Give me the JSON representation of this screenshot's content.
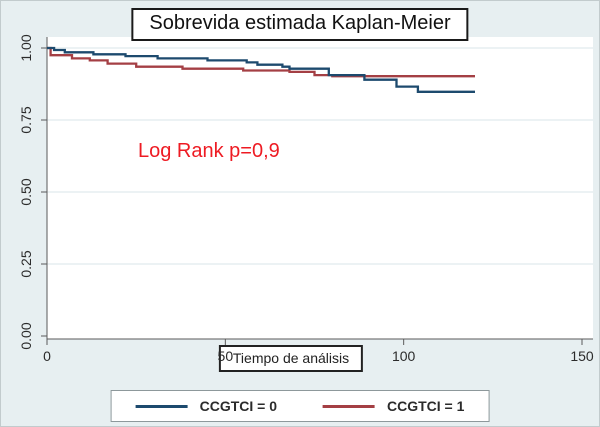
{
  "figure": {
    "title": "Sobrevida estimada Kaplan-Meier",
    "annotation": "Log Rank p=0,9",
    "xlabel": "Tiempo de análisis"
  },
  "colors": {
    "background": "#e7eff1",
    "plot_background": "#ffffff",
    "gridline": "#d9e6e9",
    "axis": "#5a5a5a",
    "annotation_red": "#ee1b23",
    "series_blue": "#1d4a6e",
    "series_red": "#a43f44"
  },
  "legend": {
    "entries": [
      {
        "label": "CCGTCI = 0",
        "color": "#1d4a6e"
      },
      {
        "label": "CCGTCI = 1",
        "color": "#a43f44"
      }
    ]
  },
  "chart_data": {
    "type": "line",
    "subtype": "kaplan-meier-step",
    "title": "Sobrevida estimada Kaplan-Meier",
    "xlabel": "Tiempo de análisis",
    "ylabel": "",
    "xlim": [
      0,
      150
    ],
    "ylim": [
      0,
      1
    ],
    "xticks": [
      0,
      50,
      100,
      150
    ],
    "xtick_labels": [
      "0",
      "50",
      "100",
      "150"
    ],
    "yticks": [
      0,
      0.25,
      0.5,
      0.75,
      1
    ],
    "ytick_labels": [
      "0.00",
      "0.25",
      "0.50",
      "0.75",
      "1.00"
    ],
    "grid": true,
    "legend_position": "bottom-center",
    "annotation": {
      "text": "Log Rank p=0,9",
      "x": 26,
      "y": 0.67,
      "color": "#ee1b23"
    },
    "series": [
      {
        "name": "CCGTCI = 0",
        "color": "#1d4a6e",
        "step": true,
        "points": [
          [
            0,
            1.0
          ],
          [
            2,
            0.993
          ],
          [
            5,
            0.985
          ],
          [
            13,
            0.978
          ],
          [
            22,
            0.972
          ],
          [
            31,
            0.964
          ],
          [
            45,
            0.957
          ],
          [
            56,
            0.95
          ],
          [
            59,
            0.942
          ],
          [
            66,
            0.935
          ],
          [
            68,
            0.928
          ],
          [
            79,
            0.906
          ],
          [
            89,
            0.89
          ],
          [
            98,
            0.866
          ],
          [
            104,
            0.848
          ],
          [
            120,
            0.848
          ]
        ]
      },
      {
        "name": "CCGTCI = 1",
        "color": "#a43f44",
        "step": true,
        "points": [
          [
            0,
            1.0
          ],
          [
            1,
            0.975
          ],
          [
            7,
            0.964
          ],
          [
            12,
            0.957
          ],
          [
            17,
            0.946
          ],
          [
            25,
            0.935
          ],
          [
            38,
            0.928
          ],
          [
            55,
            0.922
          ],
          [
            68,
            0.917
          ],
          [
            75,
            0.906
          ],
          [
            80,
            0.902
          ],
          [
            120,
            0.902
          ]
        ]
      }
    ]
  }
}
